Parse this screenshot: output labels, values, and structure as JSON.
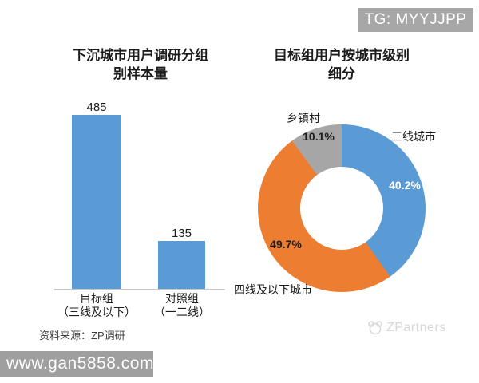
{
  "badge": {
    "text": "TG: MYYJJPP",
    "bg": "#a7a7a7"
  },
  "source_note": "资料来源：ZP调研",
  "brand_logo": {
    "text": "ZPartners"
  },
  "url_watermark": {
    "text": "www.gan5858.com",
    "bg": "#9f9f9f"
  },
  "colors": {
    "blue": "#5b9bd5",
    "orange": "#ed7d31",
    "gray": "#a6a6a6",
    "white_label": "#ffffff"
  },
  "chart_data": [
    {
      "type": "bar",
      "title": "下沉城市用户调研分组别样本量",
      "title_lines": [
        "下沉城市用户调研分组",
        "别样本量"
      ],
      "categories": [
        "目标组",
        "对照组"
      ],
      "category_sublabels": [
        "（三线及以下）",
        "（一二线）"
      ],
      "values": [
        485,
        135
      ],
      "data_labels": [
        "485",
        "135"
      ],
      "bar_color": "#5b9bd5",
      "ylim": [
        0,
        500
      ],
      "grid": false,
      "legend": false
    },
    {
      "type": "pie",
      "subtype": "donut",
      "title": "目标组用户按城市级别细分",
      "title_lines": [
        "目标组用户按城市级别",
        "细分"
      ],
      "slices": [
        {
          "label": "三线城市",
          "value": 40.2,
          "pct_label": "40.2%",
          "color": "#5b9bd5"
        },
        {
          "label": "四线及以下城市",
          "value": 49.7,
          "pct_label": "49.7%",
          "color": "#ed7d31"
        },
        {
          "label": "乡镇村",
          "value": 10.1,
          "pct_label": "10.1%",
          "color": "#a6a6a6"
        }
      ],
      "start_angle_deg": 0,
      "direction": "clockwise",
      "hole_ratio": 0.49,
      "legend": false
    }
  ]
}
